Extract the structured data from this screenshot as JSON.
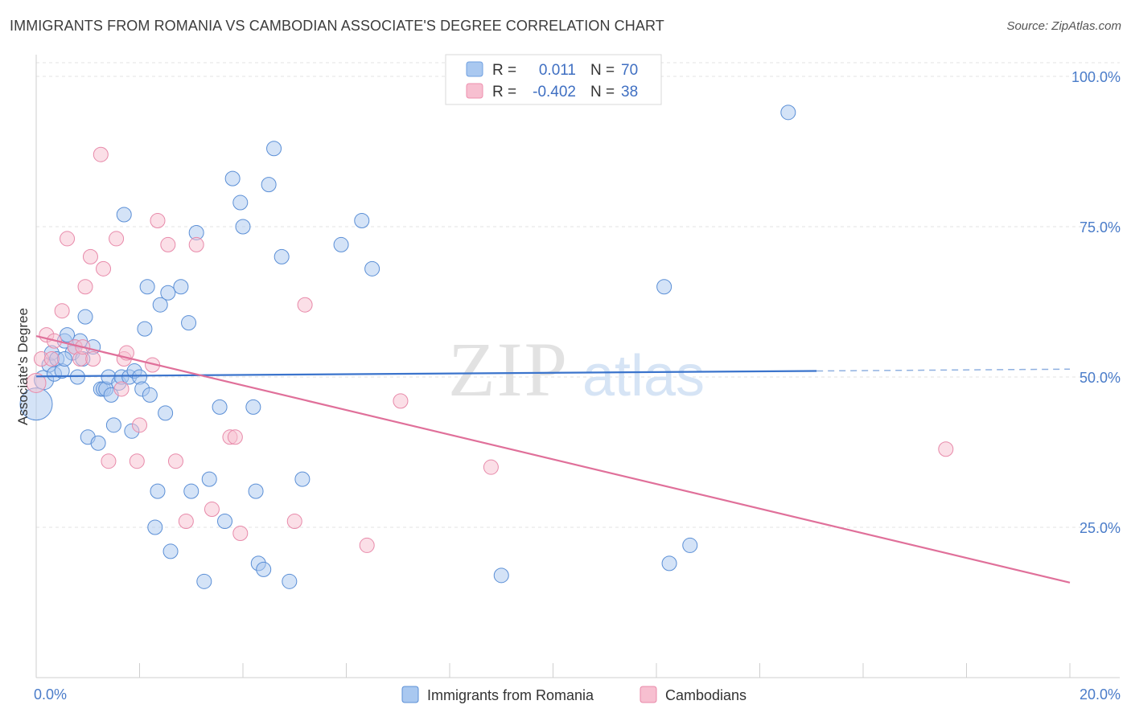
{
  "title": "IMMIGRANTS FROM ROMANIA VS CAMBODIAN ASSOCIATE'S DEGREE CORRELATION CHART",
  "source": "Source: ZipAtlas.com",
  "watermark": {
    "zip": "ZIP",
    "atlas": "atlas"
  },
  "stats_legend": [
    {
      "r_label": "R =",
      "r_value": "0.011",
      "n_label": "N =",
      "n_value": "70",
      "color": "#a9c8f0",
      "stroke": "#6f9fe0"
    },
    {
      "r_label": "R =",
      "r_value": "-0.402",
      "n_label": "N =",
      "n_value": "38",
      "color": "#f7bfd0",
      "stroke": "#ee8fae"
    }
  ],
  "chart_data": {
    "type": "scatter",
    "xlabel": "",
    "ylabel": "Associate's Degree",
    "xlim": [
      0,
      20
    ],
    "ylim": [
      0,
      102
    ],
    "x_tick_labels": [
      {
        "value": 0,
        "label": "0.0%"
      },
      {
        "value": 20,
        "label": "20.0%"
      }
    ],
    "y_tick_labels": [
      {
        "value": 100,
        "label": "100.0%"
      },
      {
        "value": 75,
        "label": "75.0%"
      },
      {
        "value": 50,
        "label": "50.0%"
      },
      {
        "value": 25,
        "label": "25.0%"
      }
    ],
    "legend_position": "bottom",
    "series": [
      {
        "name": "Immigrants from Romania",
        "color": "#a9c8f0",
        "stroke": "#5b8fd6",
        "trend": {
          "x": [
            0,
            15.1
          ],
          "y": [
            50.1,
            51.0
          ],
          "dashed_to": [
            20,
            51.3
          ]
        },
        "points": [
          [
            0.0,
            45.5,
            20
          ],
          [
            0.15,
            49.5,
            12
          ],
          [
            0.25,
            52,
            9
          ],
          [
            0.3,
            54,
            9
          ],
          [
            0.35,
            50.5,
            9
          ],
          [
            0.4,
            53,
            9
          ],
          [
            0.5,
            51,
            9
          ],
          [
            0.55,
            56,
            9
          ],
          [
            0.6,
            57,
            9
          ],
          [
            0.7,
            54,
            9
          ],
          [
            0.75,
            55,
            9
          ],
          [
            0.8,
            50,
            9
          ],
          [
            0.85,
            56,
            9
          ],
          [
            0.9,
            53,
            9
          ],
          [
            0.95,
            60,
            9
          ],
          [
            1.1,
            55,
            9
          ],
          [
            1.0,
            40,
            9
          ],
          [
            1.2,
            39,
            9
          ],
          [
            1.25,
            48,
            9
          ],
          [
            1.3,
            48,
            9
          ],
          [
            1.35,
            48,
            9
          ],
          [
            1.4,
            50,
            9
          ],
          [
            1.45,
            47,
            9
          ],
          [
            1.5,
            42,
            9
          ],
          [
            1.6,
            49,
            9
          ],
          [
            1.65,
            50,
            9
          ],
          [
            1.7,
            77,
            9
          ],
          [
            1.8,
            50,
            9
          ],
          [
            1.85,
            41,
            9
          ],
          [
            1.9,
            51,
            9
          ],
          [
            2.0,
            50,
            9
          ],
          [
            2.05,
            48,
            9
          ],
          [
            2.1,
            58,
            9
          ],
          [
            2.15,
            65,
            9
          ],
          [
            2.2,
            47,
            9
          ],
          [
            2.3,
            25,
            9
          ],
          [
            2.35,
            31,
            9
          ],
          [
            2.4,
            62,
            9
          ],
          [
            2.5,
            44,
            9
          ],
          [
            2.55,
            64,
            9
          ],
          [
            2.6,
            21,
            9
          ],
          [
            2.8,
            65,
            9
          ],
          [
            2.95,
            59,
            9
          ],
          [
            3.0,
            31,
            9
          ],
          [
            3.1,
            74,
            9
          ],
          [
            3.25,
            16,
            9
          ],
          [
            3.35,
            33,
            9
          ],
          [
            3.55,
            45,
            9
          ],
          [
            3.65,
            26,
            9
          ],
          [
            3.8,
            83,
            9
          ],
          [
            3.95,
            79,
            9
          ],
          [
            4.0,
            75,
            9
          ],
          [
            4.2,
            45,
            9
          ],
          [
            4.25,
            31,
            9
          ],
          [
            4.3,
            19,
            9
          ],
          [
            4.4,
            18,
            9
          ],
          [
            4.5,
            82,
            9
          ],
          [
            4.6,
            88,
            9
          ],
          [
            4.75,
            70,
            9
          ],
          [
            4.9,
            16,
            9
          ],
          [
            5.15,
            33,
            9
          ],
          [
            5.9,
            72,
            9
          ],
          [
            6.3,
            76,
            9
          ],
          [
            6.5,
            68,
            9
          ],
          [
            9.0,
            17,
            9
          ],
          [
            12.15,
            65,
            9
          ],
          [
            12.25,
            19,
            9
          ],
          [
            12.65,
            22,
            9
          ],
          [
            14.55,
            94,
            9
          ],
          [
            0.55,
            53,
            9
          ]
        ]
      },
      {
        "name": "Cambodians",
        "color": "#f7bfd0",
        "stroke": "#e88aaa",
        "trend": {
          "x": [
            0,
            20
          ],
          "y": [
            56.8,
            15.8
          ]
        },
        "points": [
          [
            0.0,
            49,
            12
          ],
          [
            0.1,
            53,
            9
          ],
          [
            0.2,
            57,
            9
          ],
          [
            0.35,
            56,
            9
          ],
          [
            0.5,
            61,
            9
          ],
          [
            0.6,
            73,
            9
          ],
          [
            0.75,
            55,
            9
          ],
          [
            0.85,
            53,
            9
          ],
          [
            0.9,
            55,
            9
          ],
          [
            0.95,
            65,
            9
          ],
          [
            1.05,
            70,
            9
          ],
          [
            1.1,
            53,
            9
          ],
          [
            1.25,
            87,
            9
          ],
          [
            1.3,
            68,
            9
          ],
          [
            1.4,
            36,
            9
          ],
          [
            1.55,
            73,
            9
          ],
          [
            1.65,
            48,
            9
          ],
          [
            1.7,
            53,
            9
          ],
          [
            1.75,
            54,
            9
          ],
          [
            1.95,
            36,
            9
          ],
          [
            2.0,
            42,
            9
          ],
          [
            2.25,
            52,
            9
          ],
          [
            2.35,
            76,
            9
          ],
          [
            2.55,
            72,
            9
          ],
          [
            2.7,
            36,
            9
          ],
          [
            2.9,
            26,
            9
          ],
          [
            3.1,
            72,
            9
          ],
          [
            3.4,
            28,
            9
          ],
          [
            3.75,
            40,
            9
          ],
          [
            3.85,
            40,
            9
          ],
          [
            3.95,
            24,
            9
          ],
          [
            5.0,
            26,
            9
          ],
          [
            5.2,
            62,
            9
          ],
          [
            6.4,
            22,
            9
          ],
          [
            7.05,
            46,
            9
          ],
          [
            8.8,
            35,
            9
          ],
          [
            17.6,
            38,
            9
          ],
          [
            0.3,
            53,
            9
          ]
        ]
      }
    ]
  }
}
